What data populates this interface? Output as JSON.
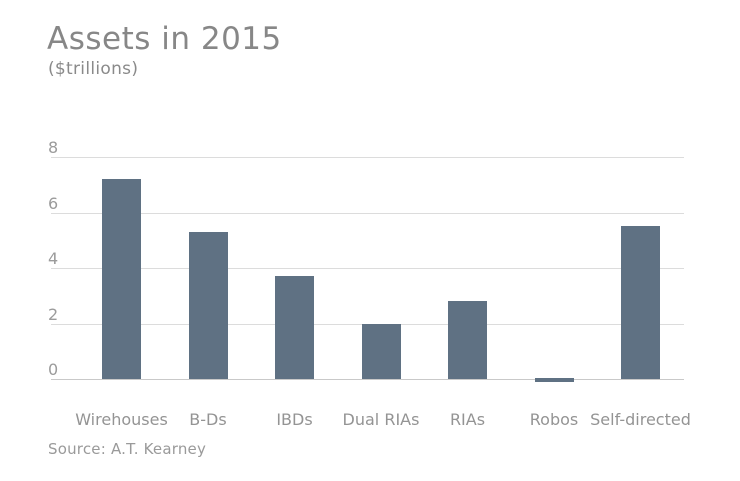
{
  "chart_data": {
    "type": "bar",
    "title": "Assets in 2015",
    "subtitle": "($trillions)",
    "categories": [
      "Wirehouses",
      "B-Ds",
      "IBDs",
      "Dual RIAs",
      "RIAs",
      "Robos",
      "Self-directed"
    ],
    "values": [
      7.2,
      5.3,
      3.7,
      2.0,
      2.8,
      0.05,
      5.5
    ],
    "xlabel": "",
    "ylabel": "",
    "yticks": [
      8,
      6,
      4,
      2,
      0
    ],
    "ylim": [
      0,
      8
    ],
    "grid": true,
    "legend_position": "none",
    "bar_color": "#5f7183",
    "source": "Source: A.T. Kearney"
  }
}
